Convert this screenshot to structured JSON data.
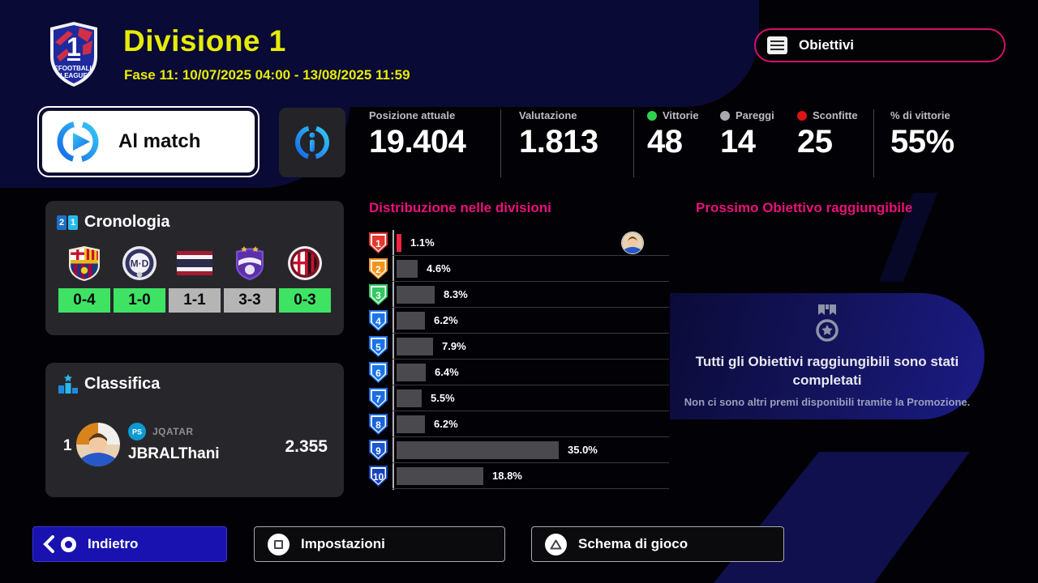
{
  "header": {
    "title": "Divisione 1",
    "subtitle": "Fase 11: 10/07/2025 04:00 - 13/08/2025 11:59",
    "objectives_button": "Obiettivi",
    "league_logo": {
      "number": "1",
      "line1": "EFOOTBALL",
      "line2": "LEAGUE"
    }
  },
  "actions": {
    "to_match": "Al match",
    "info_icon": "info-icon"
  },
  "stats": {
    "items": [
      {
        "label": "Posizione attuale",
        "value": "19.404"
      },
      {
        "label": "Valutazione",
        "value": "1.813"
      },
      {
        "label": "Vittorie",
        "value": "48",
        "dot": "#2fd24e"
      },
      {
        "label": "Pareggi",
        "value": "14",
        "dot": "#a9a9ad"
      },
      {
        "label": "Sconfitte",
        "value": "25",
        "dot": "#dc1414"
      },
      {
        "label": "% di vittorie",
        "value": "55%"
      }
    ]
  },
  "history": {
    "title": "Cronologia",
    "matches": [
      {
        "team": "barcelona",
        "score": "0-4",
        "result": "win"
      },
      {
        "team": "md",
        "score": "1-0",
        "result": "win"
      },
      {
        "team": "thailand",
        "score": "1-1",
        "result": "draw"
      },
      {
        "team": "alain",
        "score": "3-3",
        "result": "draw"
      },
      {
        "team": "milan",
        "score": "0-3",
        "result": "win"
      }
    ],
    "result_colors": {
      "win": "#3fe364",
      "draw": "#b5b5b5"
    }
  },
  "ranking": {
    "title": "Classifica",
    "rows": [
      {
        "rank": "1",
        "platform": "playstation-icon",
        "tag": "JQATAR",
        "name": "JBRALThani",
        "rating": "2.355"
      }
    ]
  },
  "chart_data": {
    "type": "bar",
    "title": "Distribuzione nelle divisioni",
    "orientation": "horizontal",
    "categories": [
      "1",
      "2",
      "3",
      "4",
      "5",
      "6",
      "7",
      "8",
      "9",
      "10"
    ],
    "values": [
      1.1,
      4.6,
      8.3,
      6.2,
      7.9,
      6.4,
      5.5,
      6.2,
      35.0,
      18.8
    ],
    "labels": [
      "1.1%",
      "4.6%",
      "8.3%",
      "6.2%",
      "7.9%",
      "6.4%",
      "5.5%",
      "6.2%",
      "35.0%",
      "18.8%"
    ],
    "xlim": [
      0,
      38
    ],
    "grid": "row-separators",
    "highlight_bar_color": "#ee2440",
    "bar_color": "#4a4a4e",
    "player_marker_division": "1",
    "badge_colors": [
      "#e4392e",
      "#f2951d",
      "#31c863",
      "#1b74e8",
      "#1b74e8",
      "#1b74e8",
      "#1b6ce2",
      "#1b62da",
      "#1b56d0",
      "#1643bc"
    ]
  },
  "objective": {
    "title": "Prossimo Obiettivo raggiungibile",
    "heading": "Tutti gli Obiettivi raggiungibili sono stati completati",
    "subtext": "Non ci sono altri premi disponibili tramite la Promozione.",
    "medal_icon": "medal-icon"
  },
  "footer": {
    "back": "Indietro",
    "settings": "Impostazioni",
    "scheme": "Schema di gioco"
  },
  "colors": {
    "accent_yellow": "#e6ec05",
    "accent_pink": "#ea1179",
    "accent_blue_gradient": [
      "#35c8f5",
      "#1668e8"
    ],
    "back_button_blue": "#1912b0",
    "panel_gray": "#27272b"
  }
}
